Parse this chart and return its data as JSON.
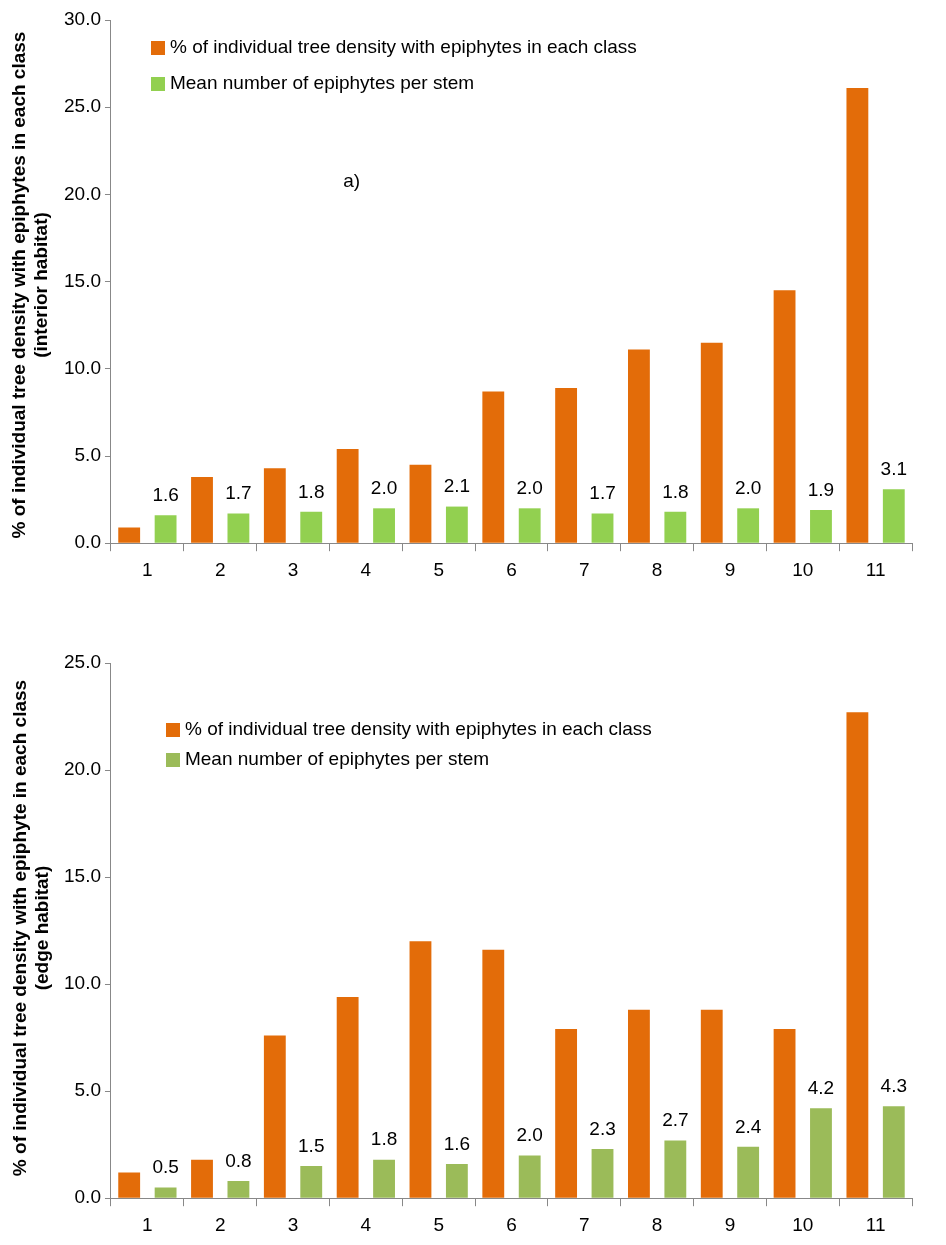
{
  "chart_data": [
    {
      "type": "bar",
      "ylabel": "% of individual tree density with epiphytes in each class (interior habitat)",
      "annotations": [
        "a)"
      ],
      "categories": [
        "1",
        "2",
        "3",
        "4",
        "5",
        "6",
        "7",
        "8",
        "9",
        "10",
        "11"
      ],
      "series": [
        {
          "name": "% of individual tree density with epiphytes in each class",
          "color": "#e36c09",
          "values": [
            0.9,
            3.8,
            4.3,
            5.4,
            4.5,
            8.7,
            8.9,
            11.1,
            11.5,
            14.5,
            26.1
          ]
        },
        {
          "name": "Mean number of epiphytes per stem",
          "color": "#92d050",
          "values": [
            1.6,
            1.7,
            1.8,
            2.0,
            2.1,
            2.0,
            1.7,
            1.8,
            2.0,
            1.9,
            3.1
          ],
          "value_labels": [
            "1.6",
            "1.7",
            "1.8",
            "2.0",
            "2.1",
            "2.0",
            "1.7",
            "1.8",
            "2.0",
            "1.9",
            "3.1"
          ]
        }
      ],
      "ylim": [
        0,
        30
      ],
      "yticks": [
        {
          "value": 0,
          "label": "0.0"
        },
        {
          "value": 5,
          "label": "5.0"
        },
        {
          "value": 10,
          "label": "10.0"
        },
        {
          "value": 15,
          "label": "15.0"
        },
        {
          "value": 20,
          "label": "20.0"
        },
        {
          "value": 25,
          "label": "25.0"
        },
        {
          "value": 30,
          "label": "30.0"
        }
      ],
      "grid": false,
      "legend": "top left"
    },
    {
      "type": "bar",
      "ylabel": "% of individual tree density with epiphyte in each class (edge habitat)",
      "categories": [
        "1",
        "2",
        "3",
        "4",
        "5",
        "6",
        "7",
        "8",
        "9",
        "10",
        "11"
      ],
      "series": [
        {
          "name": "% of individual tree density with epiphytes in each class",
          "color": "#e36c09",
          "values": [
            1.2,
            1.8,
            7.6,
            9.4,
            12.0,
            11.6,
            7.9,
            8.8,
            8.8,
            7.9,
            22.7
          ]
        },
        {
          "name": "Mean number of epiphytes per stem",
          "color": "#9bbb59",
          "values": [
            0.5,
            0.8,
            1.5,
            1.8,
            1.6,
            2.0,
            2.3,
            2.7,
            2.4,
            4.2,
            4.3
          ],
          "value_labels": [
            "0.5",
            "0.8",
            "1.5",
            "1.8",
            "1.6",
            "2.0",
            "2.3",
            "2.7",
            "2.4",
            "4.2",
            "4.3"
          ]
        }
      ],
      "ylim": [
        0,
        25
      ],
      "yticks": [
        {
          "value": 0,
          "label": "0.0"
        },
        {
          "value": 5,
          "label": "5.0"
        },
        {
          "value": 10,
          "label": "10.0"
        },
        {
          "value": 15,
          "label": "15.0"
        },
        {
          "value": 20,
          "label": "20.0"
        },
        {
          "value": 25,
          "label": "25.0"
        }
      ],
      "grid": false,
      "legend": "top left"
    }
  ]
}
